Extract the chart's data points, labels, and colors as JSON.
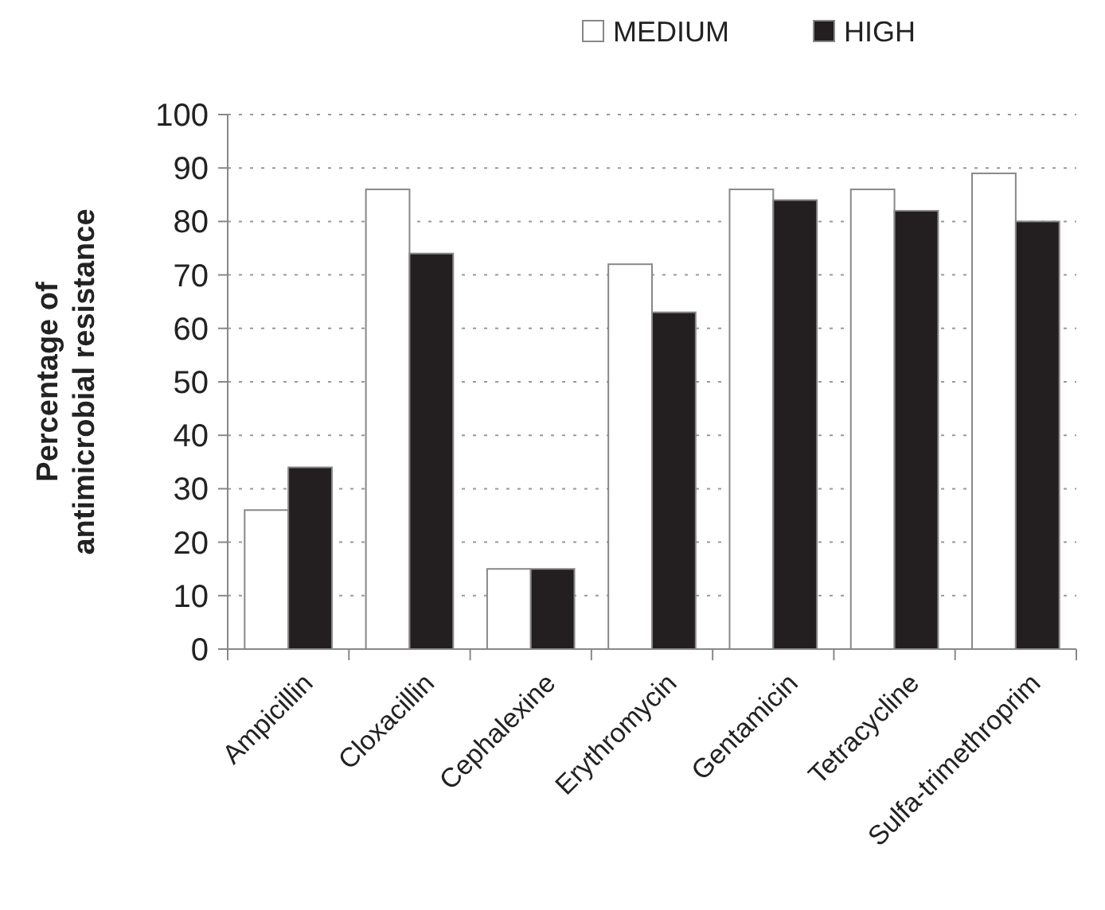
{
  "chart_data": {
    "type": "bar",
    "ylabel": "Percentage of antimicrobial resistance",
    "categories": [
      "Ampicillin",
      "Cloxacillin",
      "Cephalexine",
      "Erythromycin",
      "Gentamicin",
      "Tetracycline",
      "Sulfa-trimethroprim"
    ],
    "series": [
      {
        "name": "MEDIUM",
        "color": "#ffffff",
        "values": [
          26,
          86,
          15,
          72,
          86,
          86,
          89
        ]
      },
      {
        "name": "HIGH",
        "color": "#231f20",
        "values": [
          34,
          74,
          15,
          63,
          84,
          82,
          80
        ]
      }
    ],
    "ylim": [
      0,
      100
    ],
    "yticks": [
      0,
      10,
      20,
      30,
      40,
      50,
      60,
      70,
      80,
      90,
      100
    ],
    "grid": "y",
    "legend": "top"
  }
}
